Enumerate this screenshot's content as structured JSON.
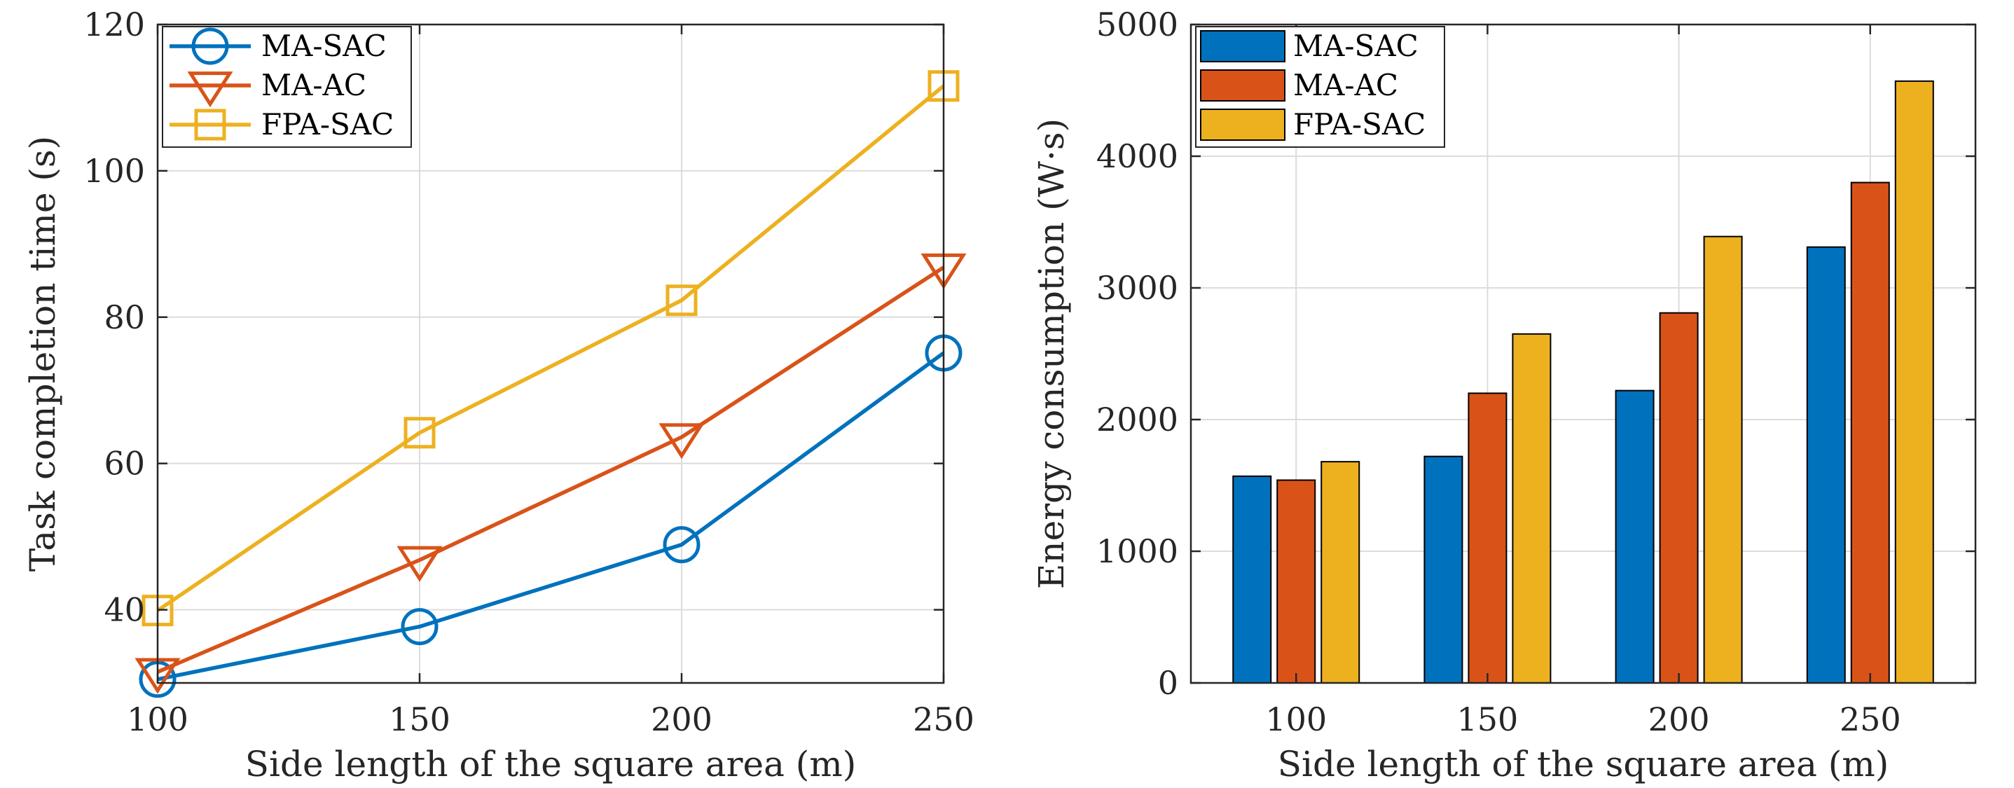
{
  "chart_data": [
    {
      "type": "line",
      "title": "",
      "xlabel": "Side length of the square area (m)",
      "ylabel": "Task completion time (s)",
      "x": [
        100,
        150,
        200,
        250
      ],
      "xlim": [
        100,
        250
      ],
      "ylim": [
        30,
        120
      ],
      "xticks": [
        "100",
        "150",
        "200",
        "250"
      ],
      "yticks": [
        40,
        60,
        80,
        100,
        120
      ],
      "grid": true,
      "legend_position": "top-left",
      "series": [
        {
          "name": "MA-SAC",
          "marker": "circle",
          "color": "#0072BD",
          "values": [
            30.5,
            37.7,
            48.9,
            75.1
          ]
        },
        {
          "name": "MA-AC",
          "marker": "triangle-down",
          "color": "#D95319",
          "values": [
            31.5,
            46.8,
            63.6,
            86.8
          ]
        },
        {
          "name": "FPA-SAC",
          "marker": "square",
          "color": "#EDB120",
          "values": [
            39.9,
            64.2,
            82.3,
            111.6
          ]
        }
      ]
    },
    {
      "type": "bar",
      "title": "",
      "xlabel": "Side length of the square area (m)",
      "ylabel": "Energy consumption (W·s)",
      "categories": [
        "100",
        "150",
        "200",
        "250"
      ],
      "ylim": [
        0,
        5000
      ],
      "yticks": [
        0,
        1000,
        2000,
        3000,
        4000,
        5000
      ],
      "grid": true,
      "legend_position": "top-left",
      "series": [
        {
          "name": "MA-SAC",
          "color": "#0072BD",
          "values": [
            1570,
            1720,
            2220,
            3310
          ]
        },
        {
          "name": "MA-AC",
          "color": "#D95319",
          "values": [
            1540,
            2200,
            2810,
            3800
          ]
        },
        {
          "name": "FPA-SAC",
          "color": "#EDB120",
          "values": [
            1680,
            2650,
            3390,
            4570
          ]
        }
      ]
    }
  ]
}
